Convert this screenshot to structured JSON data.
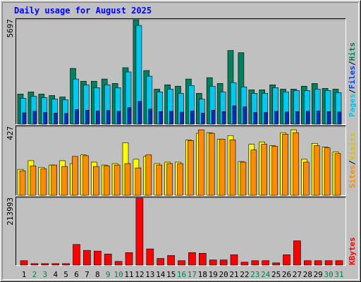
{
  "chart_data": {
    "type": "bar",
    "title": "Daily usage for August 2025",
    "legend_separator": "/",
    "categories": [
      "1",
      "2",
      "3",
      "4",
      "5",
      "6",
      "7",
      "8",
      "9",
      "10",
      "11",
      "12",
      "13",
      "14",
      "15",
      "16",
      "17",
      "18",
      "19",
      "20",
      "21",
      "22",
      "23",
      "24",
      "25",
      "26",
      "27",
      "28",
      "29",
      "30",
      "31"
    ],
    "category_colors": [
      "#000000",
      "#00805c",
      "#00805c",
      "#000000",
      "#000000",
      "#000000",
      "#000000",
      "#000000",
      "#00805c",
      "#00805c",
      "#000000",
      "#000000",
      "#000000",
      "#000000",
      "#000000",
      "#00805c",
      "#00805c",
      "#000000",
      "#000000",
      "#000000",
      "#000000",
      "#000000",
      "#00805c",
      "#00805c",
      "#000000",
      "#000000",
      "#000000",
      "#000000",
      "#000000",
      "#00805c",
      "#00805c"
    ],
    "panels": [
      {
        "ylim": [
          0,
          5697
        ],
        "yticks": [
          5697
        ],
        "series": [
          {
            "name": "Hits",
            "color": "#00805c",
            "legend_color": "#00805c",
            "values": [
              1640,
              1755,
              1640,
              1560,
              1480,
              3040,
              2340,
              2340,
              2460,
              2220,
              3080,
              5697,
              2925,
              1910,
              2145,
              2070,
              2460,
              1680,
              2535,
              2220,
              4020,
              3900,
              1870,
              1870,
              2145,
              1910,
              1910,
              2070,
              2220,
              1950,
              1910
            ]
          },
          {
            "name": "Files",
            "color": "#00c8f0",
            "legend_color": "#0040ff",
            "values": [
              1405,
              1520,
              1445,
              1365,
              1325,
              2460,
              2145,
              1990,
              2145,
              1990,
              2850,
              5385,
              2615,
              1755,
              1910,
              1680,
              2105,
              1365,
              2070,
              1755,
              2265,
              2030,
              1680,
              1680,
              1990,
              1755,
              1835,
              1835,
              1910,
              1835,
              1715
            ]
          },
          {
            "name": "Pages",
            "color": "#0030c0",
            "legend_color": "#00c8f0",
            "values": [
              620,
              700,
              640,
              600,
              580,
              800,
              760,
              720,
              740,
              700,
              900,
              1250,
              820,
              680,
              700,
              650,
              720,
              600,
              760,
              680,
              1000,
              950,
              640,
              640,
              700,
              660,
              680,
              700,
              720,
              680,
              660
            ]
          }
        ]
      },
      {
        "ylim": [
          0,
          427
        ],
        "yticks": [
          427
        ],
        "series": [
          {
            "name": "Visits",
            "color": "#ffff00",
            "legend_color": "#e0c000",
            "values": [
              162,
              216,
              175,
              189,
              216,
              198,
              252,
              207,
              189,
              198,
              328,
              225,
              243,
              198,
              207,
              207,
              346,
              387,
              391,
              351,
              373,
              211,
              319,
              333,
              310,
              391,
              409,
              225,
              324,
              301,
              270
            ]
          },
          {
            "name": "Sites",
            "color": "#ff8c00",
            "legend_color": "#ff8c00",
            "values": [
              153,
              184,
              166,
              189,
              180,
              243,
              247,
              180,
              184,
              189,
              198,
              171,
              252,
              189,
              198,
              198,
              342,
              409,
              387,
              351,
              346,
              207,
              283,
              319,
              306,
              382,
              391,
              207,
              310,
              297,
              261
            ]
          }
        ]
      },
      {
        "ylim": [
          0,
          213993
        ],
        "yticks": [
          213993
        ],
        "series": [
          {
            "name": "KBytes",
            "color": "#ff0000",
            "legend_color": "#ff0000",
            "values": [
              14100,
              4700,
              4700,
              4700,
              4700,
              65900,
              47000,
              44700,
              35300,
              11800,
              40000,
              213993,
              51700,
              21200,
              30600,
              14100,
              40000,
              37600,
              16500,
              16500,
              32900,
              9400,
              14100,
              14100,
              7100,
              32900,
              77600,
              14100,
              14100,
              14100,
              14100
            ]
          }
        ]
      }
    ]
  }
}
